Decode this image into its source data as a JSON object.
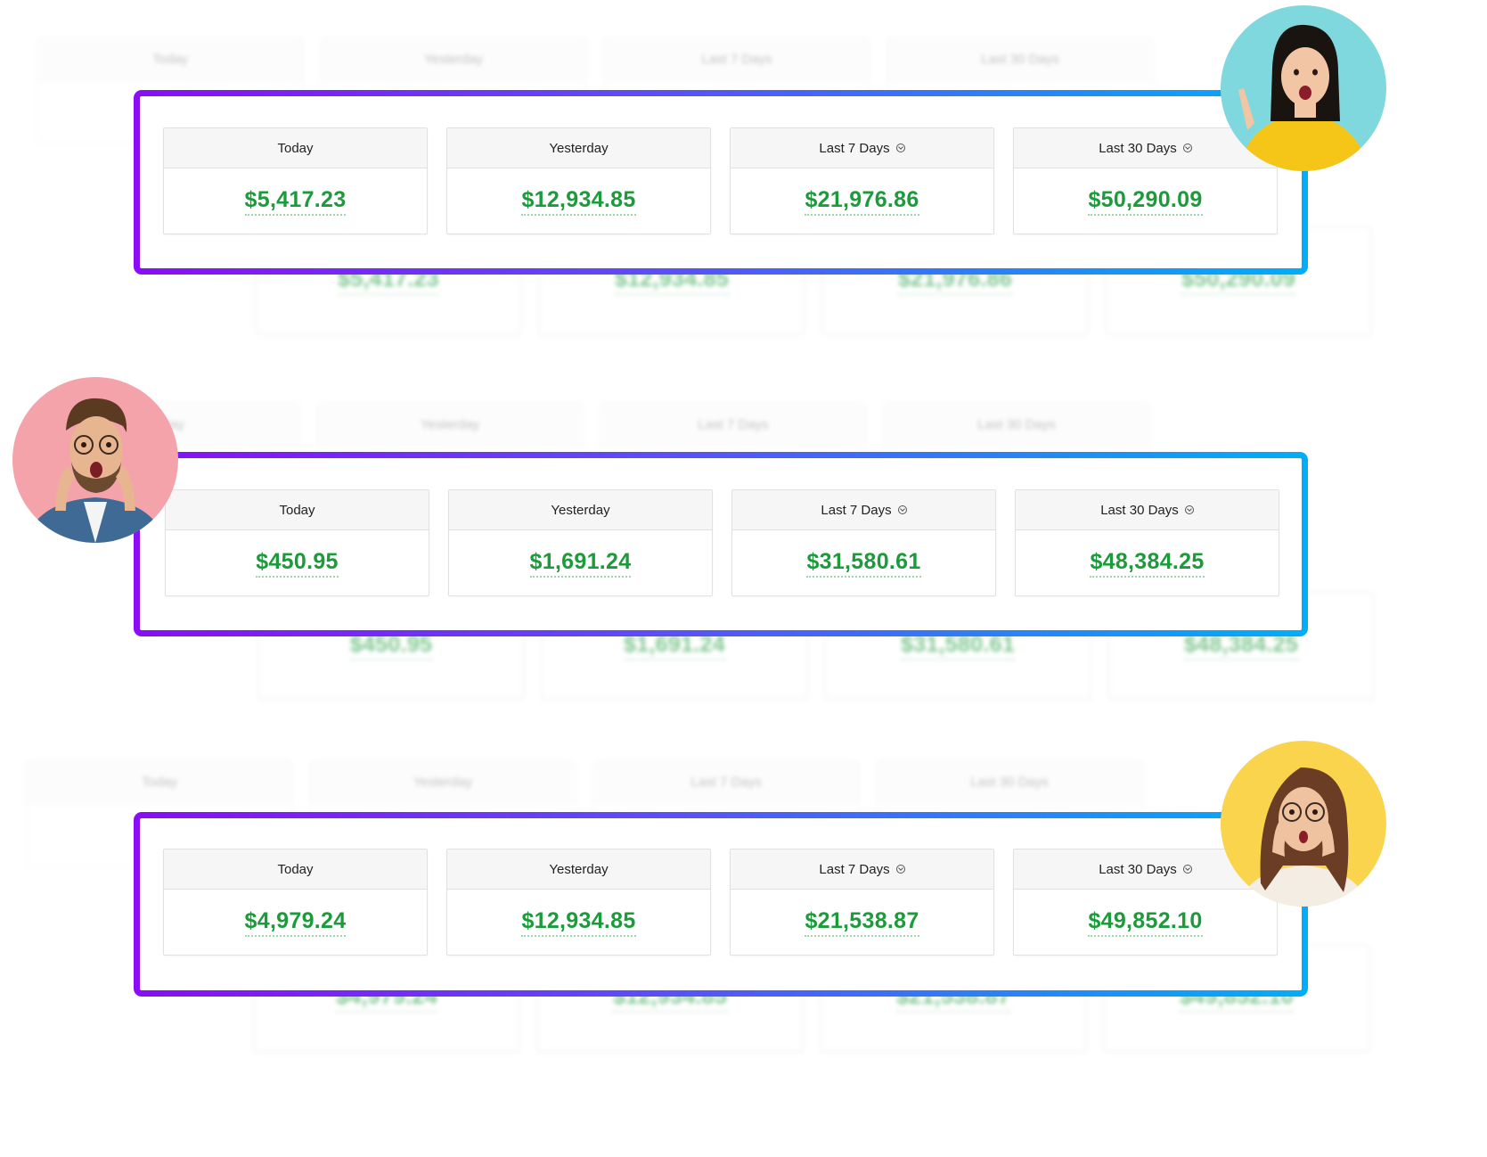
{
  "accent": {
    "green": "#1b9b3a",
    "gradient_start": "#8a0df5",
    "gradient_end": "#00aef8"
  },
  "labels": [
    "Today",
    "Yesterday",
    "Last 7 Days",
    "Last 30 Days"
  ],
  "panels": [
    {
      "values": [
        "$5,417.23",
        "$12,934.85",
        "$21,976.86",
        "$50,290.09"
      ],
      "avatar": "woman-pointing-yellow-sweater"
    },
    {
      "values": [
        "$450.95",
        "$1,691.24",
        "$31,580.61",
        "$48,384.25"
      ],
      "avatar": "surprised-man-glasses"
    },
    {
      "values": [
        "$4,979.24",
        "$12,934.85",
        "$21,538.87",
        "$49,852.10"
      ],
      "avatar": "shocked-woman-glasses"
    }
  ]
}
